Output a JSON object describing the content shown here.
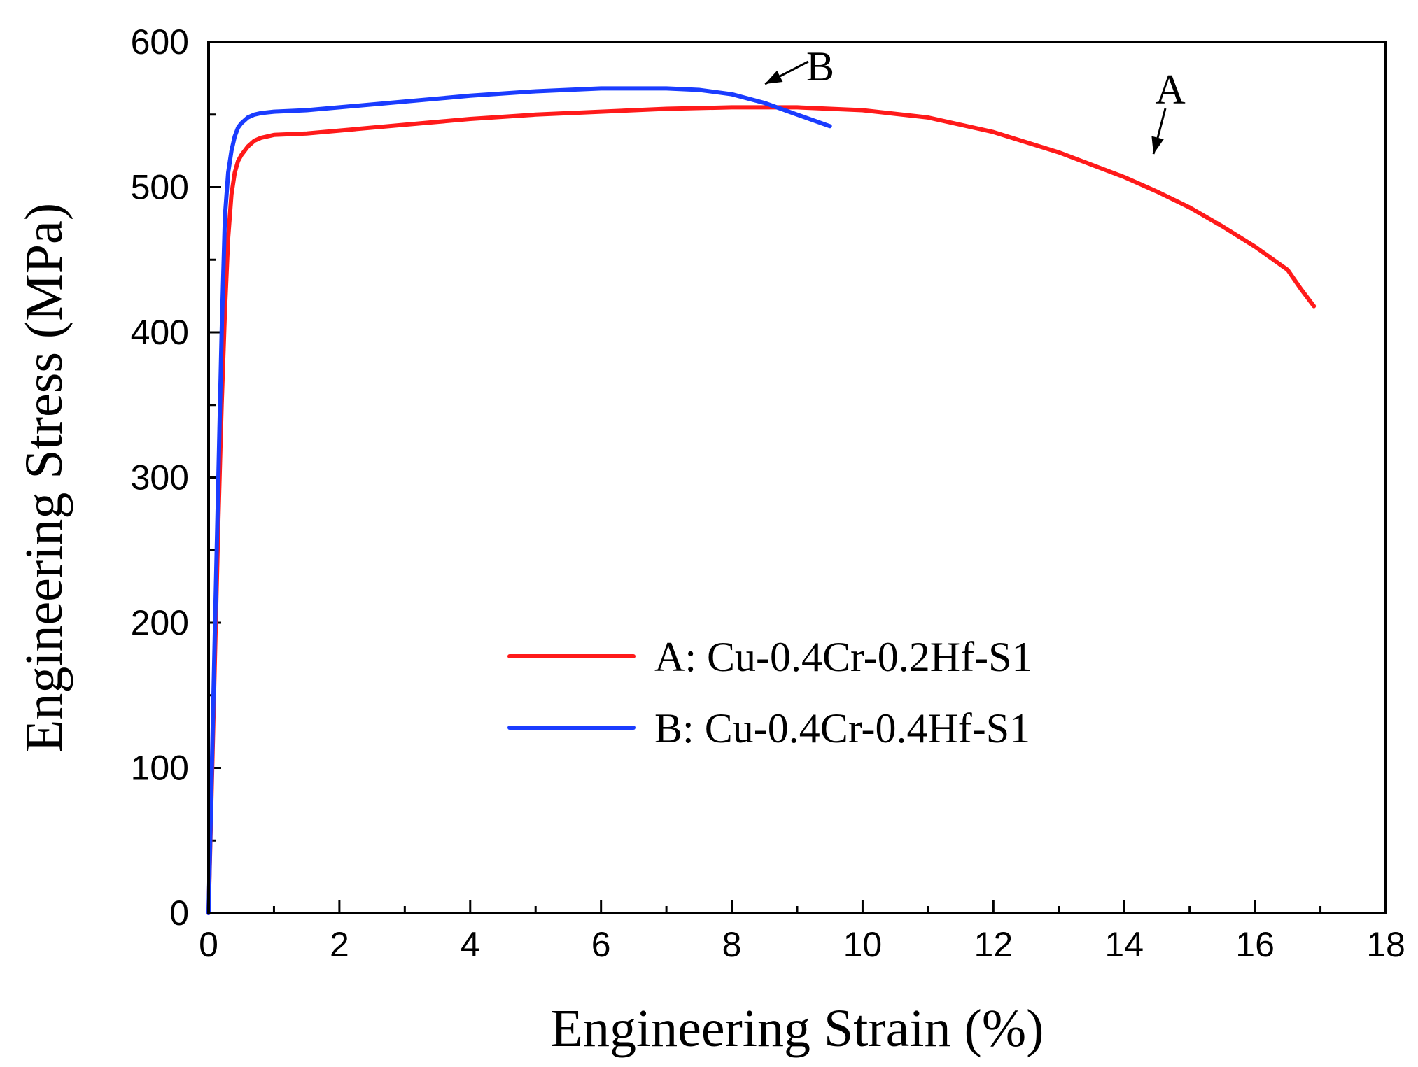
{
  "chart_data": {
    "type": "line",
    "title": "",
    "xlabel": "Engineering Strain (%)",
    "ylabel": "Engineering Stress (MPa)",
    "xlim": [
      0,
      18
    ],
    "ylim": [
      0,
      600
    ],
    "xticks": [
      0,
      2,
      4,
      6,
      8,
      10,
      12,
      14,
      16,
      18
    ],
    "yticks": [
      0,
      100,
      200,
      300,
      400,
      500,
      600
    ],
    "grid": false,
    "legend_position": "lower-right",
    "series": [
      {
        "name": "A: Cu-0.4Cr-0.2Hf-S1",
        "short": "A",
        "color": "#ff1a1a",
        "x": [
          0,
          0.05,
          0.1,
          0.15,
          0.2,
          0.25,
          0.3,
          0.35,
          0.4,
          0.45,
          0.5,
          0.6,
          0.7,
          0.8,
          1.0,
          1.5,
          2,
          3,
          4,
          5,
          6,
          7,
          8,
          9,
          10,
          11,
          12,
          13,
          14,
          14.5,
          15,
          15.5,
          16,
          16.5,
          16.7,
          16.9
        ],
        "y": [
          0,
          90,
          180,
          270,
          350,
          415,
          465,
          495,
          510,
          518,
          522,
          528,
          532,
          534,
          536,
          537,
          539,
          543,
          547,
          550,
          552,
          554,
          555,
          555,
          553,
          548,
          538,
          524,
          507,
          497,
          486,
          473,
          459,
          443,
          430,
          418
        ]
      },
      {
        "name": "B: Cu-0.4Cr-0.4Hf-S1",
        "short": "B",
        "color": "#1a3cff",
        "x": [
          0,
          0.05,
          0.1,
          0.15,
          0.2,
          0.25,
          0.3,
          0.35,
          0.4,
          0.45,
          0.5,
          0.6,
          0.7,
          0.8,
          1.0,
          1.5,
          2,
          3,
          4,
          5,
          6,
          7,
          7.5,
          8,
          8.5,
          9,
          9.5
        ],
        "y": [
          0,
          100,
          200,
          300,
          400,
          480,
          510,
          525,
          535,
          541,
          544,
          548,
          550,
          551,
          552,
          553,
          555,
          559,
          563,
          566,
          568,
          568,
          567,
          564,
          558,
          550,
          542
        ]
      }
    ],
    "annotations": [
      {
        "label": "A",
        "series": "A: Cu-0.4Cr-0.2Hf-S1",
        "at_x": 14.4,
        "at_y": 518
      },
      {
        "label": "B",
        "series": "B: Cu-0.4Cr-0.4Hf-S1",
        "at_x": 8.5,
        "at_y": 566
      }
    ]
  }
}
